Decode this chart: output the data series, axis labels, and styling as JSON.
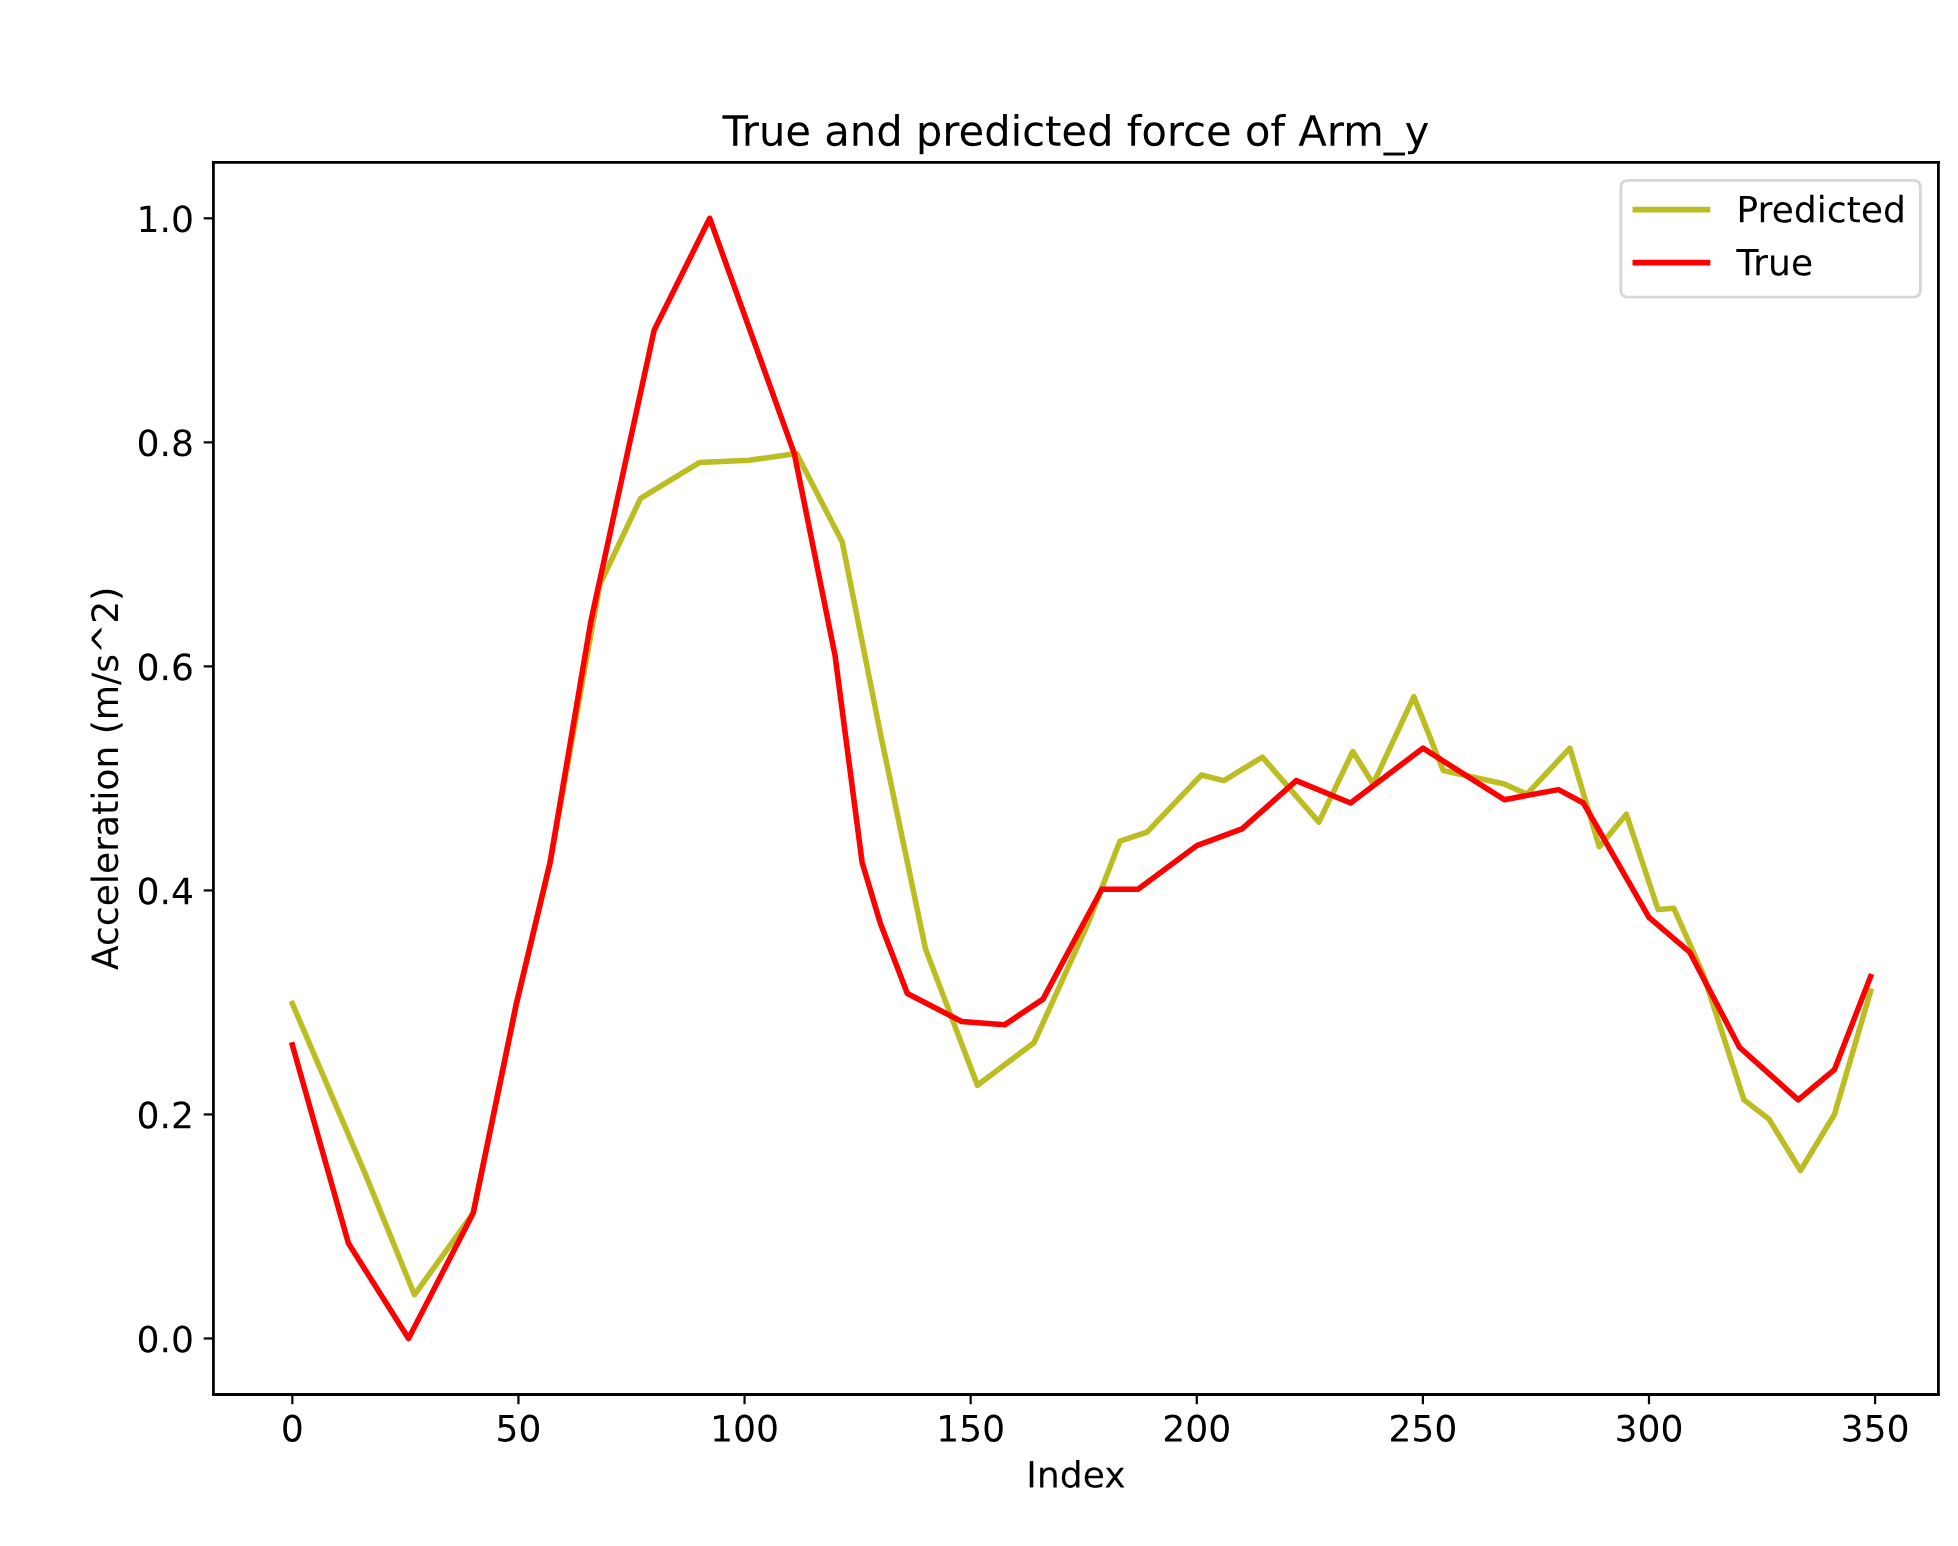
{
  "chart_data": {
    "type": "line",
    "title": "True and predicted force of Arm_y",
    "xlabel": "Index",
    "ylabel": "Acceleration (m/s^2)",
    "xlim": [
      -17.45,
      364
    ],
    "ylim": [
      -0.05,
      1.05
    ],
    "xticks": [
      0,
      50,
      100,
      150,
      200,
      250,
      300,
      350
    ],
    "yticks": [
      {
        "value": 0,
        "label": "0.0"
      },
      {
        "value": 0.2,
        "label": "0.2"
      },
      {
        "value": 0.4,
        "label": "0.4"
      },
      {
        "value": 0.6,
        "label": "0.6"
      },
      {
        "value": 0.8,
        "label": "0.8"
      },
      {
        "value": 1,
        "label": "1.0"
      }
    ],
    "grid": false,
    "legend": "top right",
    "marker": "none",
    "line_style": "solid",
    "series": [
      {
        "name": "Predicted",
        "color": "#bcbd22",
        "x": [
          0,
          16,
          27,
          40,
          49.5,
          57,
          68,
          77,
          90,
          101,
          111.5,
          121.6,
          130,
          140,
          151.5,
          164,
          176,
          183,
          189,
          201,
          206,
          214.5,
          227,
          234.5,
          239,
          248,
          254.5,
          268,
          273,
          282.5,
          289,
          295,
          302,
          305.5,
          312,
          321,
          326.5,
          333.5,
          341,
          349
        ],
        "values": [
          0.299,
          0.148,
          0.039,
          0.112,
          0.298,
          0.425,
          0.673,
          0.75,
          0.782,
          0.784,
          0.79,
          0.711,
          0.541,
          0.348,
          0.226,
          0.264,
          0.371,
          0.444,
          0.452,
          0.503,
          0.498,
          0.519,
          0.461,
          0.524,
          0.495,
          0.573,
          0.507,
          0.495,
          0.486,
          0.527,
          0.439,
          0.468,
          0.383,
          0.384,
          0.325,
          0.213,
          0.196,
          0.15,
          0.2,
          0.31
        ]
      },
      {
        "name": "True",
        "color": "#ff0000",
        "x": [
          0,
          12.4,
          25.7,
          40,
          49.5,
          57,
          66,
          80,
          92.3,
          111,
          120,
          126,
          130,
          136,
          148,
          157.5,
          166,
          179,
          187,
          200,
          210,
          222,
          234,
          250,
          268,
          280,
          285.5,
          300,
          309,
          320,
          333,
          341,
          349
        ],
        "values": [
          0.262,
          0.085,
          0.0,
          0.112,
          0.298,
          0.425,
          0.64,
          0.9,
          1.0,
          0.79,
          0.61,
          0.425,
          0.371,
          0.308,
          0.283,
          0.28,
          0.303,
          0.401,
          0.401,
          0.44,
          0.455,
          0.498,
          0.478,
          0.527,
          0.481,
          0.49,
          0.478,
          0.376,
          0.345,
          0.26,
          0.213,
          0.24,
          0.323
        ]
      }
    ]
  }
}
